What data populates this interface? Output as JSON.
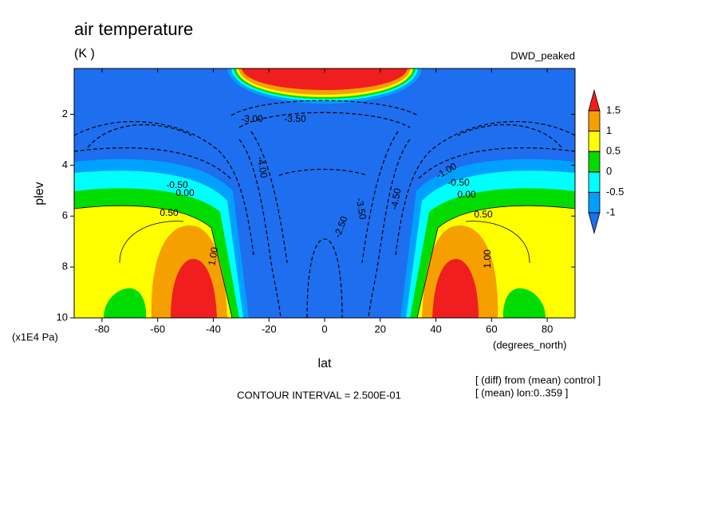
{
  "chart_data": {
    "type": "contour",
    "title": "air temperature",
    "subtitle": "(K )",
    "label": "DWD_peaked",
    "xlabel": "lat",
    "xunit": "(degrees_north)",
    "ylabel": "plev",
    "yunit": "(x1E4 Pa)",
    "xlim": [
      -90,
      90
    ],
    "xticks": [
      -80,
      -60,
      -40,
      -20,
      0,
      20,
      40,
      60,
      80
    ],
    "ylim": [
      10,
      0.2
    ],
    "yticks": [
      2,
      4,
      6,
      8,
      10
    ],
    "levels": [
      -1,
      -0.5,
      0,
      0.5,
      1,
      1.5
    ],
    "colors": [
      "#1e6ef0",
      "#00a0ff",
      "#00ffff",
      "#00dc00",
      "#ffff00",
      "#f5a000",
      "#f01e1e"
    ],
    "contour_labels": [
      "0.50",
      "1.00",
      "0.00",
      "-0.50",
      "-4.00",
      "-3.00",
      "-3.50",
      "-3.50",
      "-2.50",
      "-4.50",
      "-1.00",
      "-0.50",
      "0.00",
      "0.50",
      "1.00"
    ],
    "footnote": "CONTOUR INTERVAL = 2.500E-01",
    "notes": [
      "[ (diff) from (mean) control ]",
      "[ (mean) lon:0..359 ]"
    ]
  }
}
